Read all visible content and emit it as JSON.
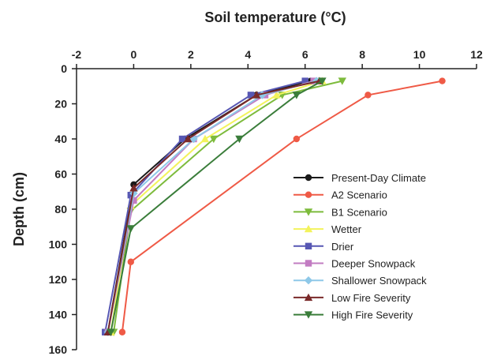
{
  "chart_data": {
    "type": "line",
    "title": "Soil temperature (°C)",
    "xlabel": "Soil temperature (°C)",
    "ylabel": "Depth (cm)",
    "xlim": [
      -2,
      12
    ],
    "ylim": [
      0,
      160
    ],
    "y_inverted": true,
    "x_axis_position": "top",
    "xticks": [
      -2,
      0,
      2,
      4,
      6,
      8,
      10,
      12
    ],
    "yticks": [
      0,
      20,
      40,
      60,
      80,
      100,
      120,
      140,
      160
    ],
    "grid": false,
    "legend_position": "right",
    "series": [
      {
        "name": "Present-Day Climate",
        "color": "#1a1a1a",
        "marker": "circle",
        "x": [
          6.2,
          4.3,
          1.8,
          0.0,
          -0.9
        ],
        "y": [
          7,
          15,
          40,
          66,
          150
        ]
      },
      {
        "name": "A2 Scenario",
        "color": "#ef5a46",
        "marker": "circle",
        "x": [
          10.8,
          8.2,
          5.7,
          -0.1,
          -0.4
        ],
        "y": [
          7,
          15,
          40,
          110,
          150
        ]
      },
      {
        "name": "B1 Scenario",
        "color": "#7dbb3c",
        "marker": "triangle-down",
        "x": [
          7.3,
          5.2,
          2.8,
          -0.1,
          -0.7
        ],
        "y": [
          7,
          15,
          40,
          81,
          150
        ]
      },
      {
        "name": "Wetter",
        "color": "#f3f35c",
        "marker": "triangle-up",
        "x": [
          6.6,
          5.0,
          2.5,
          -0.1,
          -0.8
        ],
        "y": [
          7,
          15,
          40,
          78,
          150
        ]
      },
      {
        "name": "Drier",
        "color": "#5757b3",
        "marker": "square",
        "x": [
          6.0,
          4.1,
          1.7,
          -0.1,
          -1.0
        ],
        "y": [
          7,
          15,
          40,
          72,
          150
        ]
      },
      {
        "name": "Deeper Snowpack",
        "color": "#c27cc2",
        "marker": "square",
        "x": [
          6.3,
          4.6,
          2.1,
          0.0,
          -0.9
        ],
        "y": [
          7,
          15,
          40,
          75,
          150
        ]
      },
      {
        "name": "Shallower Snowpack",
        "color": "#8ec8e8",
        "marker": "diamond",
        "x": [
          6.4,
          4.5,
          2.1,
          0.0,
          -0.9
        ],
        "y": [
          7,
          15,
          40,
          71,
          150
        ]
      },
      {
        "name": "Low Fire Severity",
        "color": "#7a2a2a",
        "marker": "triangle-up",
        "x": [
          6.5,
          4.3,
          1.9,
          0.0,
          -0.9
        ],
        "y": [
          7,
          15,
          40,
          68,
          150
        ]
      },
      {
        "name": "High Fire Severity",
        "color": "#3a7d3a",
        "marker": "triangle-down",
        "x": [
          6.6,
          5.7,
          3.7,
          -0.1,
          -0.8
        ],
        "y": [
          7,
          15,
          40,
          91,
          150
        ]
      }
    ]
  }
}
